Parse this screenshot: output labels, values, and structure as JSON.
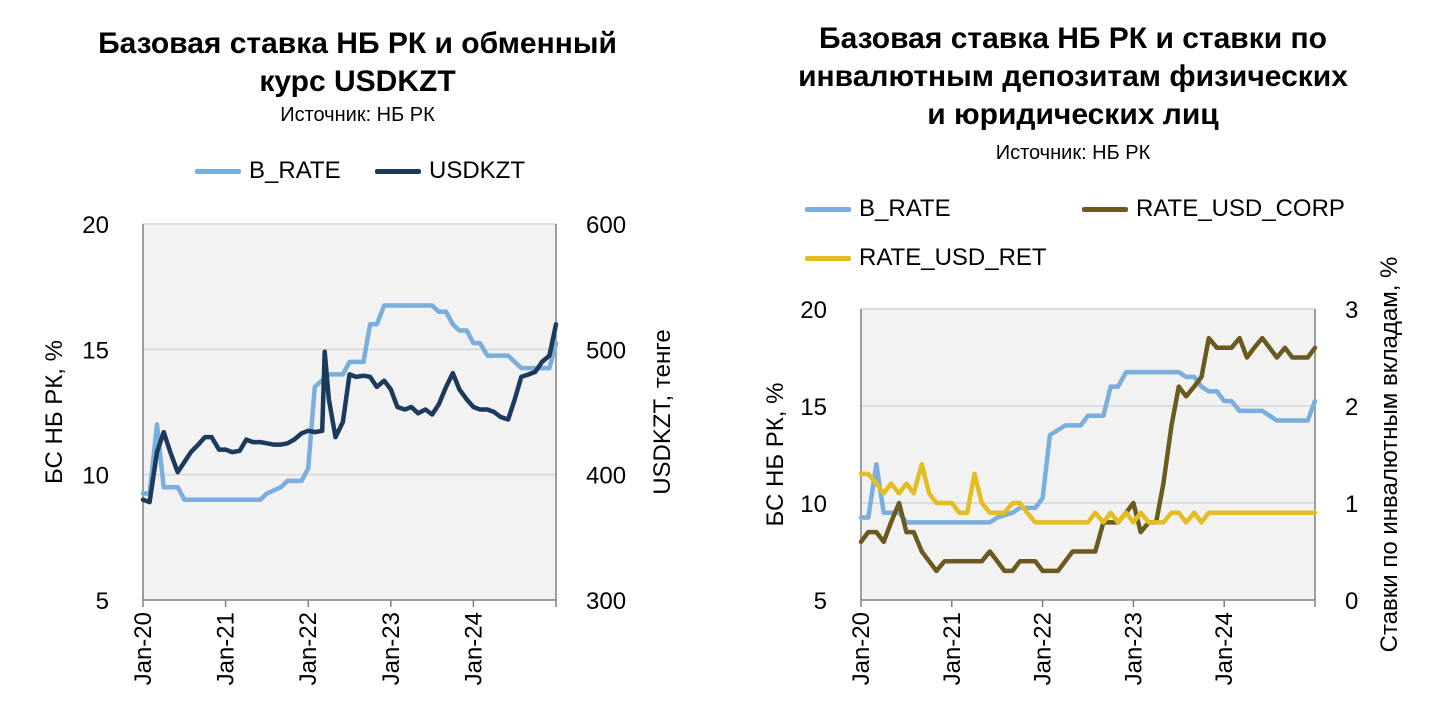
{
  "colors": {
    "b_rate": "#7aaedc",
    "usdkzt": "#1b3a5c",
    "rate_usd_corp": "#6b5a1e",
    "rate_usd_ret": "#e3bd22",
    "plot_bg": "#f2f2f2",
    "grid": "#d4d4d4"
  },
  "chart_data": [
    {
      "type": "line",
      "title": "Базовая ставка НБ РК и обменный курс USDKZT",
      "title_lines": [
        "Базовая ставка НБ РК и обменный",
        "курс USDKZT"
      ],
      "source": "Источник: НБ РК",
      "ylabel": "БС НБ РК, %",
      "y2label": "USDKZT, тенге",
      "ylim": [
        5,
        20
      ],
      "yticks": [
        "5",
        "10",
        "15",
        "20"
      ],
      "y2lim": [
        300,
        600
      ],
      "y2ticks": [
        "300",
        "400",
        "500",
        "600"
      ],
      "xlim": [
        2020.0,
        2025.0
      ],
      "xticks": [
        "Jan-20",
        "Jan-21",
        "Jan-22",
        "Jan-23",
        "Jan-24"
      ],
      "legend_position": "top",
      "series": [
        {
          "name": "B_RATE",
          "axis": "left",
          "points": [
            [
              2020.0,
              9.25
            ],
            [
              2020.08,
              9.25
            ],
            [
              2020.17,
              12
            ],
            [
              2020.25,
              9.5
            ],
            [
              2020.42,
              9.5
            ],
            [
              2020.5,
              9
            ],
            [
              2021.42,
              9
            ],
            [
              2021.5,
              9.25
            ],
            [
              2021.67,
              9.5
            ],
            [
              2021.75,
              9.75
            ],
            [
              2021.92,
              9.75
            ],
            [
              2022.0,
              10.25
            ],
            [
              2022.08,
              13.5
            ],
            [
              2022.25,
              14
            ],
            [
              2022.42,
              14
            ],
            [
              2022.5,
              14.5
            ],
            [
              2022.67,
              14.5
            ],
            [
              2022.75,
              16
            ],
            [
              2022.83,
              16
            ],
            [
              2022.92,
              16.75
            ],
            [
              2023.5,
              16.75
            ],
            [
              2023.58,
              16.5
            ],
            [
              2023.67,
              16.5
            ],
            [
              2023.75,
              16
            ],
            [
              2023.83,
              15.75
            ],
            [
              2023.92,
              15.75
            ],
            [
              2024.0,
              15.25
            ],
            [
              2024.08,
              15.25
            ],
            [
              2024.17,
              14.75
            ],
            [
              2024.42,
              14.75
            ],
            [
              2024.5,
              14.5
            ],
            [
              2024.58,
              14.25
            ],
            [
              2024.83,
              14.25
            ],
            [
              2024.92,
              14.25
            ],
            [
              2025.0,
              15.25
            ]
          ]
        },
        {
          "name": "USDKZT",
          "axis": "right",
          "points": [
            [
              2020.0,
              380
            ],
            [
              2020.08,
              378
            ],
            [
              2020.17,
              418
            ],
            [
              2020.25,
              434
            ],
            [
              2020.33,
              418
            ],
            [
              2020.42,
              402
            ],
            [
              2020.5,
              410
            ],
            [
              2020.58,
              418
            ],
            [
              2020.67,
              424
            ],
            [
              2020.75,
              430
            ],
            [
              2020.83,
              430
            ],
            [
              2020.92,
              420
            ],
            [
              2021.0,
              420
            ],
            [
              2021.08,
              418
            ],
            [
              2021.17,
              419
            ],
            [
              2021.25,
              428
            ],
            [
              2021.33,
              426
            ],
            [
              2021.42,
              426
            ],
            [
              2021.5,
              425
            ],
            [
              2021.58,
              424
            ],
            [
              2021.67,
              424
            ],
            [
              2021.75,
              425
            ],
            [
              2021.83,
              428
            ],
            [
              2021.92,
              433
            ],
            [
              2022.0,
              435
            ],
            [
              2022.08,
              434
            ],
            [
              2022.17,
              435
            ],
            [
              2022.2,
              498
            ],
            [
              2022.25,
              460
            ],
            [
              2022.33,
              430
            ],
            [
              2022.42,
              442
            ],
            [
              2022.5,
              480
            ],
            [
              2022.58,
              478
            ],
            [
              2022.67,
              479
            ],
            [
              2022.75,
              478
            ],
            [
              2022.83,
              470
            ],
            [
              2022.92,
              475
            ],
            [
              2023.0,
              468
            ],
            [
              2023.08,
              454
            ],
            [
              2023.17,
              452
            ],
            [
              2023.25,
              454
            ],
            [
              2023.33,
              449
            ],
            [
              2023.42,
              452
            ],
            [
              2023.5,
              448
            ],
            [
              2023.58,
              456
            ],
            [
              2023.67,
              470
            ],
            [
              2023.75,
              481
            ],
            [
              2023.83,
              468
            ],
            [
              2023.92,
              460
            ],
            [
              2024.0,
              454
            ],
            [
              2024.08,
              452
            ],
            [
              2024.17,
              452
            ],
            [
              2024.25,
              450
            ],
            [
              2024.33,
              446
            ],
            [
              2024.42,
              444
            ],
            [
              2024.5,
              460
            ],
            [
              2024.58,
              478
            ],
            [
              2024.67,
              480
            ],
            [
              2024.75,
              482
            ],
            [
              2024.83,
              490
            ],
            [
              2024.92,
              495
            ],
            [
              2025.0,
              520
            ]
          ]
        }
      ]
    },
    {
      "type": "line",
      "title": "Базовая ставка НБ РК и ставки по инвалютным депозитам физических и юридических лиц",
      "title_lines": [
        "Базовая ставка НБ РК и ставки по",
        "инвалютным депозитам физических",
        "и юридических лиц"
      ],
      "source": "Источник: НБ РК",
      "ylabel": "БС НБ РК, %",
      "y2label": "Ставки по инвалютным вкладам, %",
      "ylim": [
        5,
        20
      ],
      "yticks": [
        "5",
        "10",
        "15",
        "20"
      ],
      "y2lim": [
        0,
        3
      ],
      "y2ticks": [
        "0",
        "1",
        "2",
        "3"
      ],
      "xlim": [
        2020.0,
        2025.0
      ],
      "xticks": [
        "Jan-20",
        "Jan-21",
        "Jan-22",
        "Jan-23",
        "Jan-24"
      ],
      "legend_position": "top",
      "series": [
        {
          "name": "B_RATE",
          "axis": "left",
          "points": [
            [
              2020.0,
              9.25
            ],
            [
              2020.08,
              9.25
            ],
            [
              2020.17,
              12
            ],
            [
              2020.25,
              9.5
            ],
            [
              2020.42,
              9.5
            ],
            [
              2020.5,
              9
            ],
            [
              2021.42,
              9
            ],
            [
              2021.5,
              9.25
            ],
            [
              2021.67,
              9.5
            ],
            [
              2021.75,
              9.75
            ],
            [
              2021.92,
              9.75
            ],
            [
              2022.0,
              10.25
            ],
            [
              2022.08,
              13.5
            ],
            [
              2022.25,
              14
            ],
            [
              2022.42,
              14
            ],
            [
              2022.5,
              14.5
            ],
            [
              2022.67,
              14.5
            ],
            [
              2022.75,
              16
            ],
            [
              2022.83,
              16
            ],
            [
              2022.92,
              16.75
            ],
            [
              2023.5,
              16.75
            ],
            [
              2023.58,
              16.5
            ],
            [
              2023.67,
              16.5
            ],
            [
              2023.75,
              16
            ],
            [
              2023.83,
              15.75
            ],
            [
              2023.92,
              15.75
            ],
            [
              2024.0,
              15.25
            ],
            [
              2024.08,
              15.25
            ],
            [
              2024.17,
              14.75
            ],
            [
              2024.42,
              14.75
            ],
            [
              2024.5,
              14.5
            ],
            [
              2024.58,
              14.25
            ],
            [
              2024.83,
              14.25
            ],
            [
              2024.92,
              14.25
            ],
            [
              2025.0,
              15.25
            ]
          ]
        },
        {
          "name": "RATE_USD_CORP",
          "axis": "right",
          "points": [
            [
              2020.0,
              0.6
            ],
            [
              2020.08,
              0.7
            ],
            [
              2020.17,
              0.7
            ],
            [
              2020.25,
              0.6
            ],
            [
              2020.33,
              0.8
            ],
            [
              2020.42,
              1.0
            ],
            [
              2020.5,
              0.7
            ],
            [
              2020.58,
              0.7
            ],
            [
              2020.67,
              0.5
            ],
            [
              2020.75,
              0.4
            ],
            [
              2020.83,
              0.3
            ],
            [
              2020.92,
              0.4
            ],
            [
              2021.0,
              0.4
            ],
            [
              2021.17,
              0.4
            ],
            [
              2021.33,
              0.4
            ],
            [
              2021.42,
              0.5
            ],
            [
              2021.5,
              0.4
            ],
            [
              2021.58,
              0.3
            ],
            [
              2021.67,
              0.3
            ],
            [
              2021.75,
              0.4
            ],
            [
              2021.83,
              0.4
            ],
            [
              2021.92,
              0.4
            ],
            [
              2022.0,
              0.3
            ],
            [
              2022.08,
              0.3
            ],
            [
              2022.17,
              0.3
            ],
            [
              2022.25,
              0.4
            ],
            [
              2022.33,
              0.5
            ],
            [
              2022.5,
              0.5
            ],
            [
              2022.58,
              0.5
            ],
            [
              2022.67,
              0.8
            ],
            [
              2022.75,
              0.8
            ],
            [
              2022.83,
              0.8
            ],
            [
              2022.92,
              0.9
            ],
            [
              2023.0,
              1.0
            ],
            [
              2023.08,
              0.7
            ],
            [
              2023.17,
              0.8
            ],
            [
              2023.25,
              0.8
            ],
            [
              2023.33,
              1.2
            ],
            [
              2023.42,
              1.8
            ],
            [
              2023.5,
              2.2
            ],
            [
              2023.58,
              2.1
            ],
            [
              2023.67,
              2.2
            ],
            [
              2023.75,
              2.3
            ],
            [
              2023.83,
              2.7
            ],
            [
              2023.92,
              2.6
            ],
            [
              2024.0,
              2.6
            ],
            [
              2024.08,
              2.6
            ],
            [
              2024.17,
              2.7
            ],
            [
              2024.25,
              2.5
            ],
            [
              2024.33,
              2.6
            ],
            [
              2024.42,
              2.7
            ],
            [
              2024.5,
              2.6
            ],
            [
              2024.58,
              2.5
            ],
            [
              2024.67,
              2.6
            ],
            [
              2024.75,
              2.5
            ],
            [
              2024.83,
              2.5
            ],
            [
              2024.92,
              2.5
            ],
            [
              2025.0,
              2.6
            ]
          ]
        },
        {
          "name": "RATE_USD_RET",
          "axis": "right",
          "points": [
            [
              2020.0,
              1.3
            ],
            [
              2020.08,
              1.3
            ],
            [
              2020.17,
              1.2
            ],
            [
              2020.25,
              1.1
            ],
            [
              2020.33,
              1.2
            ],
            [
              2020.42,
              1.1
            ],
            [
              2020.5,
              1.2
            ],
            [
              2020.58,
              1.1
            ],
            [
              2020.67,
              1.4
            ],
            [
              2020.75,
              1.1
            ],
            [
              2020.83,
              1.0
            ],
            [
              2020.92,
              1.0
            ],
            [
              2021.0,
              1.0
            ],
            [
              2021.08,
              0.9
            ],
            [
              2021.17,
              0.9
            ],
            [
              2021.25,
              1.3
            ],
            [
              2021.33,
              1.0
            ],
            [
              2021.42,
              0.9
            ],
            [
              2021.5,
              0.9
            ],
            [
              2021.58,
              0.9
            ],
            [
              2021.67,
              1.0
            ],
            [
              2021.75,
              1.0
            ],
            [
              2021.83,
              0.9
            ],
            [
              2021.92,
              0.8
            ],
            [
              2022.0,
              0.8
            ],
            [
              2022.5,
              0.8
            ],
            [
              2022.58,
              0.9
            ],
            [
              2022.67,
              0.8
            ],
            [
              2022.75,
              0.9
            ],
            [
              2022.83,
              0.8
            ],
            [
              2022.92,
              0.9
            ],
            [
              2023.0,
              0.8
            ],
            [
              2023.08,
              0.9
            ],
            [
              2023.17,
              0.8
            ],
            [
              2023.25,
              0.8
            ],
            [
              2023.33,
              0.8
            ],
            [
              2023.42,
              0.9
            ],
            [
              2023.5,
              0.9
            ],
            [
              2023.58,
              0.8
            ],
            [
              2023.67,
              0.9
            ],
            [
              2023.75,
              0.8
            ],
            [
              2023.83,
              0.9
            ],
            [
              2024.0,
              0.9
            ],
            [
              2024.5,
              0.9
            ],
            [
              2025.0,
              0.9
            ]
          ]
        }
      ]
    }
  ]
}
